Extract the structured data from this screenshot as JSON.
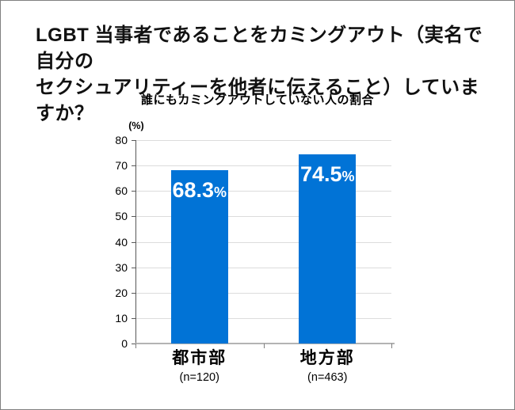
{
  "header": {
    "title_lines": [
      "LGBT 当事者であることをカミングアウト（実名で自分の",
      "セクシュアリティーを他者に伝えること）していますか？"
    ]
  },
  "chart_data": {
    "type": "bar",
    "title": "誰にもカミングアウトしていない人の割合",
    "categories": [
      "都市部",
      "地方部"
    ],
    "values": [
      68.3,
      74.5
    ],
    "value_labels": [
      "68.3",
      "74.5"
    ],
    "unit": "%",
    "n_labels": [
      "(n=120)",
      "(n=463)"
    ],
    "y_axis_unit_label": "(%)",
    "ylim": [
      0,
      80
    ],
    "yticks": [
      0,
      10,
      20,
      30,
      40,
      50,
      60,
      70,
      80
    ],
    "grid": true,
    "legend": "none"
  },
  "colors": {
    "bar": "#0173D6",
    "gridline": "#DCDCDC",
    "axis": "#595959",
    "baseline": "#B3B3B3",
    "text": "#000000",
    "bar_label_text": "#FFFFFF"
  }
}
